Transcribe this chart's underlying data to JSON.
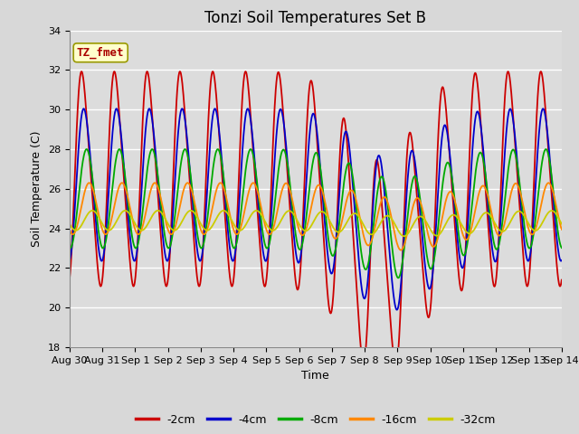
{
  "title": "Tonzi Soil Temperatures Set B",
  "xlabel": "Time",
  "ylabel": "Soil Temperature (C)",
  "ylim": [
    18,
    34
  ],
  "yticks": [
    18,
    20,
    22,
    24,
    26,
    28,
    30,
    32,
    34
  ],
  "xtick_labels": [
    "Aug 30",
    "Aug 31",
    "Sep 1",
    "Sep 2",
    "Sep 3",
    "Sep 4",
    "Sep 5",
    "Sep 6",
    "Sep 7",
    "Sep 8",
    "Sep 9",
    "Sep 10",
    "Sep 11",
    "Sep 12",
    "Sep 13",
    "Sep 14"
  ],
  "legend_labels": [
    "-2cm",
    "-4cm",
    "-8cm",
    "-16cm",
    "-32cm"
  ],
  "legend_colors": [
    "#cc0000",
    "#0000cc",
    "#00aa00",
    "#ff8800",
    "#cccc00"
  ],
  "annotation_text": "TZ_fmet",
  "annotation_color": "#aa0000",
  "annotation_bg": "#ffffcc",
  "fig_bg": "#d8d8d8",
  "plot_bg": "#dcdcdc",
  "title_fontsize": 12,
  "axis_label_fontsize": 9,
  "tick_fontsize": 8
}
